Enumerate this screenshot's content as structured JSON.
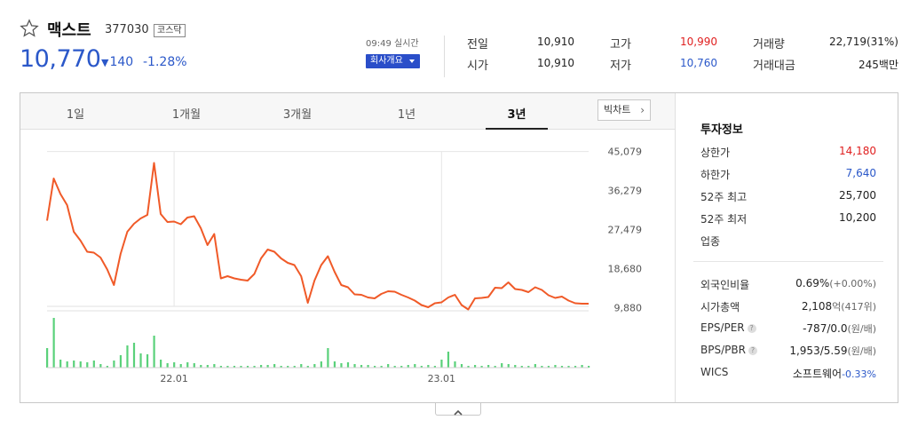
{
  "stock": {
    "name": "맥스트",
    "code": "377030",
    "market": "코스닥",
    "price": "10,770",
    "change": "140",
    "change_rate": "-1.28%"
  },
  "realtime_label": "09:49 실시간",
  "company_button": "회사개요",
  "quotes": [
    {
      "label": "전일",
      "value": "10,910",
      "color": "#222222"
    },
    {
      "label": "고가",
      "value": "10,990",
      "color": "#e02020"
    },
    {
      "label": "거래량",
      "value": "22,719(31%)",
      "color": "#222222"
    },
    {
      "label": "시가",
      "value": "10,910",
      "color": "#222222"
    },
    {
      "label": "저가",
      "value": "10,760",
      "color": "#2b58c9"
    },
    {
      "label": "거래대금",
      "value": "245백만",
      "color": "#222222"
    }
  ],
  "tabs": [
    "1일",
    "1개월",
    "3개월",
    "1년",
    "3년"
  ],
  "active_tab": "3년",
  "bigchart_label": "빅차트",
  "chart_data": {
    "type": "line",
    "period": "3년",
    "line_color": "#f05a28",
    "volume_color": "#5ad17a",
    "y_ticks": [
      "45,079",
      "36,279",
      "27,479",
      "18,680",
      "9,880"
    ],
    "y_tick_values": [
      45079,
      36279,
      27479,
      18680,
      9880
    ],
    "ylim": [
      7400,
      50000
    ],
    "x_labels": [
      "22.01",
      "23.01"
    ],
    "x_label_indices": [
      19,
      59
    ],
    "values": [
      29500,
      39000,
      35500,
      33000,
      27000,
      25000,
      22500,
      22300,
      21200,
      18500,
      15000,
      22000,
      27000,
      28800,
      30000,
      30800,
      42500,
      31000,
      29200,
      29300,
      28700,
      30200,
      30500,
      27800,
      24000,
      26500,
      16500,
      17000,
      16500,
      16200,
      16000,
      17500,
      21000,
      23000,
      22500,
      21000,
      20000,
      19500,
      17000,
      11000,
      16000,
      19500,
      21500,
      18000,
      15000,
      14500,
      12900,
      12800,
      12200,
      12000,
      13000,
      13600,
      13500,
      12800,
      12200,
      11500,
      10500,
      10000,
      10900,
      11100,
      12200,
      12800,
      10500,
      9500,
      12000,
      12100,
      12300,
      14400,
      14300,
      15600,
      14100,
      13900,
      13400,
      14500,
      13900,
      12700,
      12100,
      12400,
      11500,
      10900,
      10800,
      10800
    ],
    "volumes": [
      22,
      56,
      9,
      7,
      8,
      7,
      6,
      8,
      4,
      2,
      8,
      14,
      25,
      28,
      16,
      15,
      36,
      9,
      5,
      6,
      4,
      6,
      5,
      3,
      3,
      4,
      2,
      2,
      2,
      2,
      2,
      2,
      3,
      3,
      4,
      2,
      2,
      2,
      4,
      2,
      4,
      7,
      22,
      7,
      5,
      6,
      4,
      3,
      3,
      2,
      2,
      4,
      2,
      2,
      3,
      4,
      2,
      3,
      2,
      9,
      18,
      7,
      4,
      2,
      3,
      2,
      3,
      2,
      5,
      4,
      3,
      2,
      2,
      4,
      2,
      2,
      3,
      2,
      2,
      2,
      3,
      2
    ]
  },
  "info": {
    "title": "투자정보",
    "rows": [
      {
        "label": "상한가",
        "value": "14,180",
        "color": "#e02020"
      },
      {
        "label": "하한가",
        "value": "7,640",
        "color": "#2b58c9"
      },
      {
        "label": "52주 최고",
        "value": "25,700",
        "color": "#222222"
      },
      {
        "label": "52주 최저",
        "value": "10,200",
        "color": "#222222"
      },
      {
        "label": "업종",
        "value": "",
        "color": "#222222"
      }
    ],
    "rows2": [
      {
        "label": "외국인비율",
        "value": "0.69%",
        "sub": "(+0.00%)",
        "sub_color": "#666666",
        "help": false
      },
      {
        "label": "시가총액",
        "value": "2,108",
        "sub": "억(417위)",
        "sub_color": "#666666",
        "help": false
      },
      {
        "label": "EPS/PER",
        "value": "-787/0.0",
        "sub": "(원/배)",
        "sub_color": "#666666",
        "help": true
      },
      {
        "label": "BPS/PBR",
        "value": "1,953/5.59",
        "sub": "(원/배)",
        "sub_color": "#666666",
        "help": true
      },
      {
        "label": "WICS",
        "value": "소프트웨어",
        "sub": "-0.33%",
        "sub_color": "#2b58c9",
        "help": false
      }
    ]
  }
}
